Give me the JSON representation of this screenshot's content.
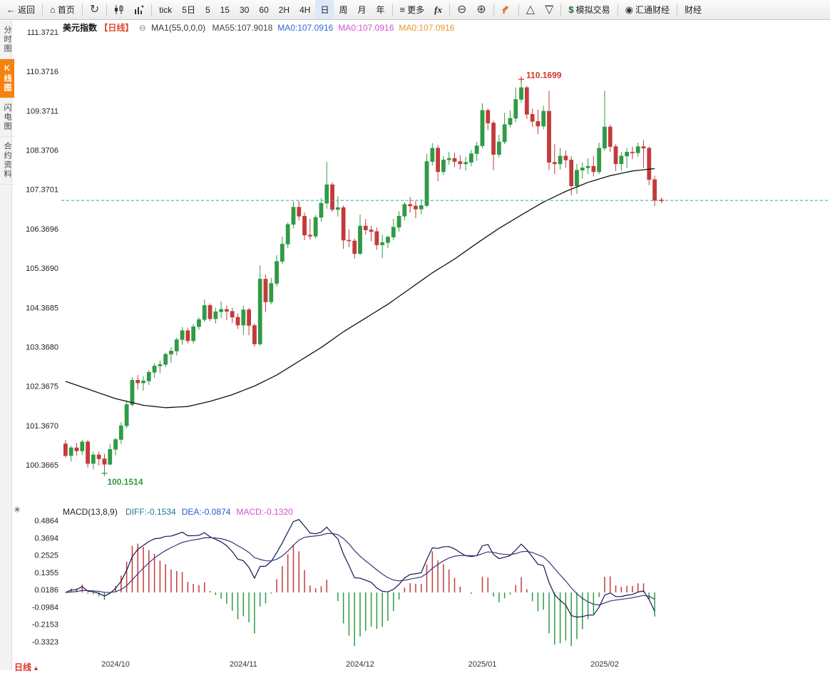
{
  "toolbar": {
    "back_label": "返回",
    "home_label": "首页",
    "periods": [
      "tick",
      "5日",
      "5",
      "15",
      "30",
      "60",
      "2H",
      "4H",
      "日",
      "周",
      "月",
      "年"
    ],
    "active_period": "日",
    "more_label": "更多",
    "fx_label": "fx",
    "sim_trading_label": "模拟交易",
    "brand_label": "汇通财经",
    "truncated_label": "财经",
    "icons": {
      "back": "←",
      "home": "⌂",
      "refresh": "↻",
      "menu": "≡",
      "zoom_out": "⊖",
      "zoom_in": "⊕",
      "triangle_up": "△",
      "triangle_down": "▽",
      "dollar": "$",
      "brand": "◉",
      "settings": "✳",
      "collapse": "⊖",
      "up_triangle": "▲"
    }
  },
  "sidebar": {
    "tabs": [
      {
        "label": "分时图",
        "active": false
      },
      {
        "label": "K线图",
        "active": true
      },
      {
        "label": "闪电图",
        "active": false
      },
      {
        "label": "合约资料",
        "active": false
      }
    ]
  },
  "chart_header": {
    "symbol": "美元指数",
    "period_tag": "【日线】",
    "ma_param_label": "MA1(55,0,0,0)",
    "ma_values": [
      {
        "text": "MA55:107.9018",
        "color": "#444444"
      },
      {
        "text": "MA0:107.0916",
        "color": "#3467d6"
      },
      {
        "text": "MA0:107.0916",
        "color": "#d24fd2"
      },
      {
        "text": "MA0:107.0916",
        "color": "#e8972e"
      }
    ]
  },
  "macd_header": {
    "param_label": "MACD(13,8,9)",
    "values": [
      {
        "text": "DIFF:-0.1534",
        "color": "#1a7a8a"
      },
      {
        "text": "DEA:-0.0874",
        "color": "#2b55d5"
      },
      {
        "text": "MACD:-0.1320",
        "color": "#d24fd2"
      }
    ]
  },
  "footer": {
    "period_label": "日线"
  },
  "chart_data": {
    "type": "candlestick",
    "title": "美元指数 日线 (US Dollar Index, daily)",
    "y_axis_labels": [
      "111.3721",
      "110.3716",
      "109.3711",
      "108.3706",
      "107.3701",
      "106.3696",
      "105.3690",
      "104.3685",
      "103.3680",
      "102.3675",
      "101.3670",
      "100.3665"
    ],
    "macd_axis_labels": [
      "0.4864",
      "0.3694",
      "0.2525",
      "0.1355",
      "0.0186",
      "-0.0984",
      "-0.2153",
      "-0.3323"
    ],
    "current_price": 107.0916,
    "high_annotation": {
      "index": 82,
      "value": 110.1699,
      "label": "110.1699"
    },
    "low_annotation": {
      "index": 7,
      "value": 100.1514,
      "label": "100.1514"
    },
    "x_ticks": [
      {
        "label": "2024/10",
        "index": 9
      },
      {
        "label": "2024/11",
        "index": 32
      },
      {
        "label": "2024/12",
        "index": 53
      },
      {
        "label": "2025/01",
        "index": 75
      },
      {
        "label": "2025/02",
        "index": 97
      }
    ],
    "candles": [
      [
        100.9,
        101.0,
        100.55,
        100.6
      ],
      [
        100.6,
        100.85,
        100.45,
        100.8
      ],
      [
        100.8,
        100.92,
        100.6,
        100.72
      ],
      [
        100.72,
        101.0,
        100.62,
        100.95
      ],
      [
        100.95,
        101.0,
        100.3,
        100.4
      ],
      [
        100.4,
        100.7,
        100.25,
        100.62
      ],
      [
        100.62,
        100.7,
        100.35,
        100.52
      ],
      [
        100.52,
        100.65,
        100.1514,
        100.38
      ],
      [
        100.38,
        100.9,
        100.35,
        100.76
      ],
      [
        100.76,
        101.05,
        100.6,
        101.01
      ],
      [
        101.01,
        101.45,
        100.9,
        101.36
      ],
      [
        101.36,
        102.0,
        101.3,
        101.9
      ],
      [
        101.9,
        102.6,
        101.85,
        102.52
      ],
      [
        102.52,
        102.65,
        102.28,
        102.45
      ],
      [
        102.45,
        102.62,
        102.25,
        102.5
      ],
      [
        102.5,
        102.78,
        102.4,
        102.72
      ],
      [
        102.72,
        102.95,
        102.58,
        102.88
      ],
      [
        102.88,
        103.02,
        102.7,
        102.92
      ],
      [
        102.92,
        103.22,
        102.85,
        103.18
      ],
      [
        103.18,
        103.36,
        102.96,
        103.26
      ],
      [
        103.26,
        103.6,
        103.15,
        103.55
      ],
      [
        103.55,
        103.87,
        103.42,
        103.78
      ],
      [
        103.78,
        103.85,
        103.45,
        103.52
      ],
      [
        103.52,
        103.95,
        103.45,
        103.88
      ],
      [
        103.88,
        104.12,
        103.8,
        104.06
      ],
      [
        104.06,
        104.57,
        104.0,
        104.42
      ],
      [
        104.42,
        104.47,
        104.02,
        104.08
      ],
      [
        104.08,
        104.36,
        103.96,
        104.26
      ],
      [
        104.26,
        104.52,
        104.1,
        104.32
      ],
      [
        104.32,
        104.42,
        104.05,
        104.27
      ],
      [
        104.27,
        104.36,
        103.97,
        104.12
      ],
      [
        104.12,
        104.22,
        103.82,
        103.92
      ],
      [
        103.92,
        104.42,
        103.67,
        104.31
      ],
      [
        104.31,
        104.36,
        103.66,
        103.91
      ],
      [
        103.91,
        103.96,
        103.37,
        103.44
      ],
      [
        103.44,
        105.44,
        103.4,
        105.09
      ],
      [
        105.09,
        105.2,
        104.26,
        104.51
      ],
      [
        104.51,
        105.12,
        104.45,
        104.98
      ],
      [
        104.98,
        105.7,
        104.9,
        105.54
      ],
      [
        105.54,
        106.17,
        105.48,
        105.98
      ],
      [
        105.98,
        106.53,
        105.88,
        106.48
      ],
      [
        106.48,
        107.06,
        106.38,
        106.92
      ],
      [
        106.92,
        107.08,
        106.58,
        106.69
      ],
      [
        106.69,
        106.78,
        106.08,
        106.21
      ],
      [
        106.21,
        106.62,
        106.09,
        106.18
      ],
      [
        106.18,
        106.72,
        106.12,
        106.66
      ],
      [
        106.66,
        107.15,
        106.55,
        107.02
      ],
      [
        107.02,
        108.07,
        106.88,
        107.49
      ],
      [
        107.49,
        107.55,
        106.8,
        106.86
      ],
      [
        106.86,
        107.2,
        106.68,
        106.91
      ],
      [
        106.91,
        106.96,
        105.86,
        106.08
      ],
      [
        106.08,
        106.36,
        105.9,
        106.06
      ],
      [
        106.06,
        106.12,
        105.61,
        105.74
      ],
      [
        105.74,
        106.73,
        105.7,
        106.44
      ],
      [
        106.44,
        106.62,
        106.22,
        106.34
      ],
      [
        106.34,
        106.45,
        106.05,
        106.3
      ],
      [
        106.3,
        106.4,
        105.84,
        105.96
      ],
      [
        105.96,
        106.22,
        105.62,
        106.02
      ],
      [
        106.02,
        106.2,
        105.88,
        106.16
      ],
      [
        106.16,
        106.62,
        106.08,
        106.41
      ],
      [
        106.41,
        106.81,
        106.3,
        106.69
      ],
      [
        106.69,
        107.05,
        106.58,
        106.99
      ],
      [
        106.99,
        107.18,
        106.78,
        106.95
      ],
      [
        106.95,
        107.08,
        106.64,
        106.87
      ],
      [
        106.87,
        107.12,
        106.74,
        106.96
      ],
      [
        106.96,
        108.27,
        106.92,
        108.08
      ],
      [
        108.08,
        108.55,
        107.98,
        108.42
      ],
      [
        108.42,
        108.5,
        107.58,
        107.82
      ],
      [
        107.82,
        108.22,
        107.74,
        108.12
      ],
      [
        108.12,
        108.32,
        108.0,
        108.16
      ],
      [
        108.16,
        108.3,
        107.94,
        108.08
      ],
      [
        108.08,
        108.24,
        107.88,
        108.02
      ],
      [
        108.02,
        108.2,
        107.85,
        108.06
      ],
      [
        108.06,
        108.38,
        107.96,
        108.28
      ],
      [
        108.28,
        108.58,
        108.1,
        108.48
      ],
      [
        108.48,
        109.56,
        108.42,
        109.38
      ],
      [
        109.38,
        109.43,
        108.88,
        109.06
      ],
      [
        109.06,
        109.12,
        107.86,
        108.26
      ],
      [
        108.26,
        108.76,
        108.18,
        108.58
      ],
      [
        108.58,
        109.32,
        108.52,
        109.02
      ],
      [
        109.02,
        109.38,
        108.94,
        109.18
      ],
      [
        109.18,
        109.96,
        109.08,
        109.66
      ],
      [
        109.66,
        110.1699,
        109.58,
        109.96
      ],
      [
        109.96,
        110.0,
        109.16,
        109.28
      ],
      [
        109.28,
        109.42,
        108.96,
        109.1
      ],
      [
        109.1,
        109.4,
        108.78,
        108.98
      ],
      [
        108.98,
        109.5,
        108.9,
        109.36
      ],
      [
        109.36,
        109.88,
        107.86,
        108.06
      ],
      [
        108.06,
        108.52,
        107.76,
        108.02
      ],
      [
        108.02,
        108.42,
        107.88,
        108.22
      ],
      [
        108.22,
        108.36,
        107.92,
        108.12
      ],
      [
        108.12,
        108.22,
        107.22,
        107.46
      ],
      [
        107.46,
        108.02,
        107.26,
        107.86
      ],
      [
        107.86,
        108.06,
        107.64,
        107.92
      ],
      [
        107.92,
        108.16,
        107.76,
        107.96
      ],
      [
        107.96,
        108.22,
        107.7,
        107.82
      ],
      [
        107.82,
        108.56,
        107.76,
        108.42
      ],
      [
        108.42,
        109.88,
        108.36,
        108.96
      ],
      [
        108.96,
        109.02,
        108.32,
        108.46
      ],
      [
        108.46,
        108.52,
        107.84,
        108.02
      ],
      [
        108.02,
        108.32,
        107.84,
        108.22
      ],
      [
        108.22,
        108.42,
        107.92,
        108.32
      ],
      [
        108.32,
        108.46,
        108.14,
        108.3
      ],
      [
        108.3,
        108.56,
        108.2,
        108.46
      ],
      [
        108.46,
        108.62,
        107.92,
        108.42
      ],
      [
        108.42,
        108.46,
        107.48,
        107.62
      ],
      [
        107.62,
        107.72,
        106.95,
        107.0916
      ]
    ],
    "ma55_anchors": [
      [
        0,
        102.49
      ],
      [
        9,
        102.05
      ],
      [
        14,
        101.88
      ],
      [
        18,
        101.82
      ],
      [
        22,
        101.85
      ],
      [
        26,
        101.98
      ],
      [
        30,
        102.15
      ],
      [
        34,
        102.37
      ],
      [
        38,
        102.65
      ],
      [
        42,
        103.0
      ],
      [
        46,
        103.35
      ],
      [
        50,
        103.75
      ],
      [
        54,
        104.1
      ],
      [
        58,
        104.45
      ],
      [
        62,
        104.85
      ],
      [
        66,
        105.25
      ],
      [
        70,
        105.6
      ],
      [
        74,
        106.0
      ],
      [
        78,
        106.38
      ],
      [
        82,
        106.72
      ],
      [
        86,
        107.05
      ],
      [
        90,
        107.32
      ],
      [
        94,
        107.55
      ],
      [
        98,
        107.72
      ],
      [
        102,
        107.84
      ],
      [
        106,
        107.9
      ]
    ],
    "macd_params": {
      "short": 8,
      "long": 13,
      "mid": 9
    },
    "colors": {
      "up": "#2f9b45",
      "down": "#c23b3b",
      "ma": "#111111",
      "price_line": "#2aa79b",
      "high_label": "#d93025",
      "low_label": "#2f9b45",
      "macd_pos": "#c23b3b",
      "macd_neg": "#2f9b45",
      "diff_line": "#141450",
      "dea_line": "#35357a"
    },
    "layout": {
      "grid": false,
      "legend": "top-left"
    }
  }
}
